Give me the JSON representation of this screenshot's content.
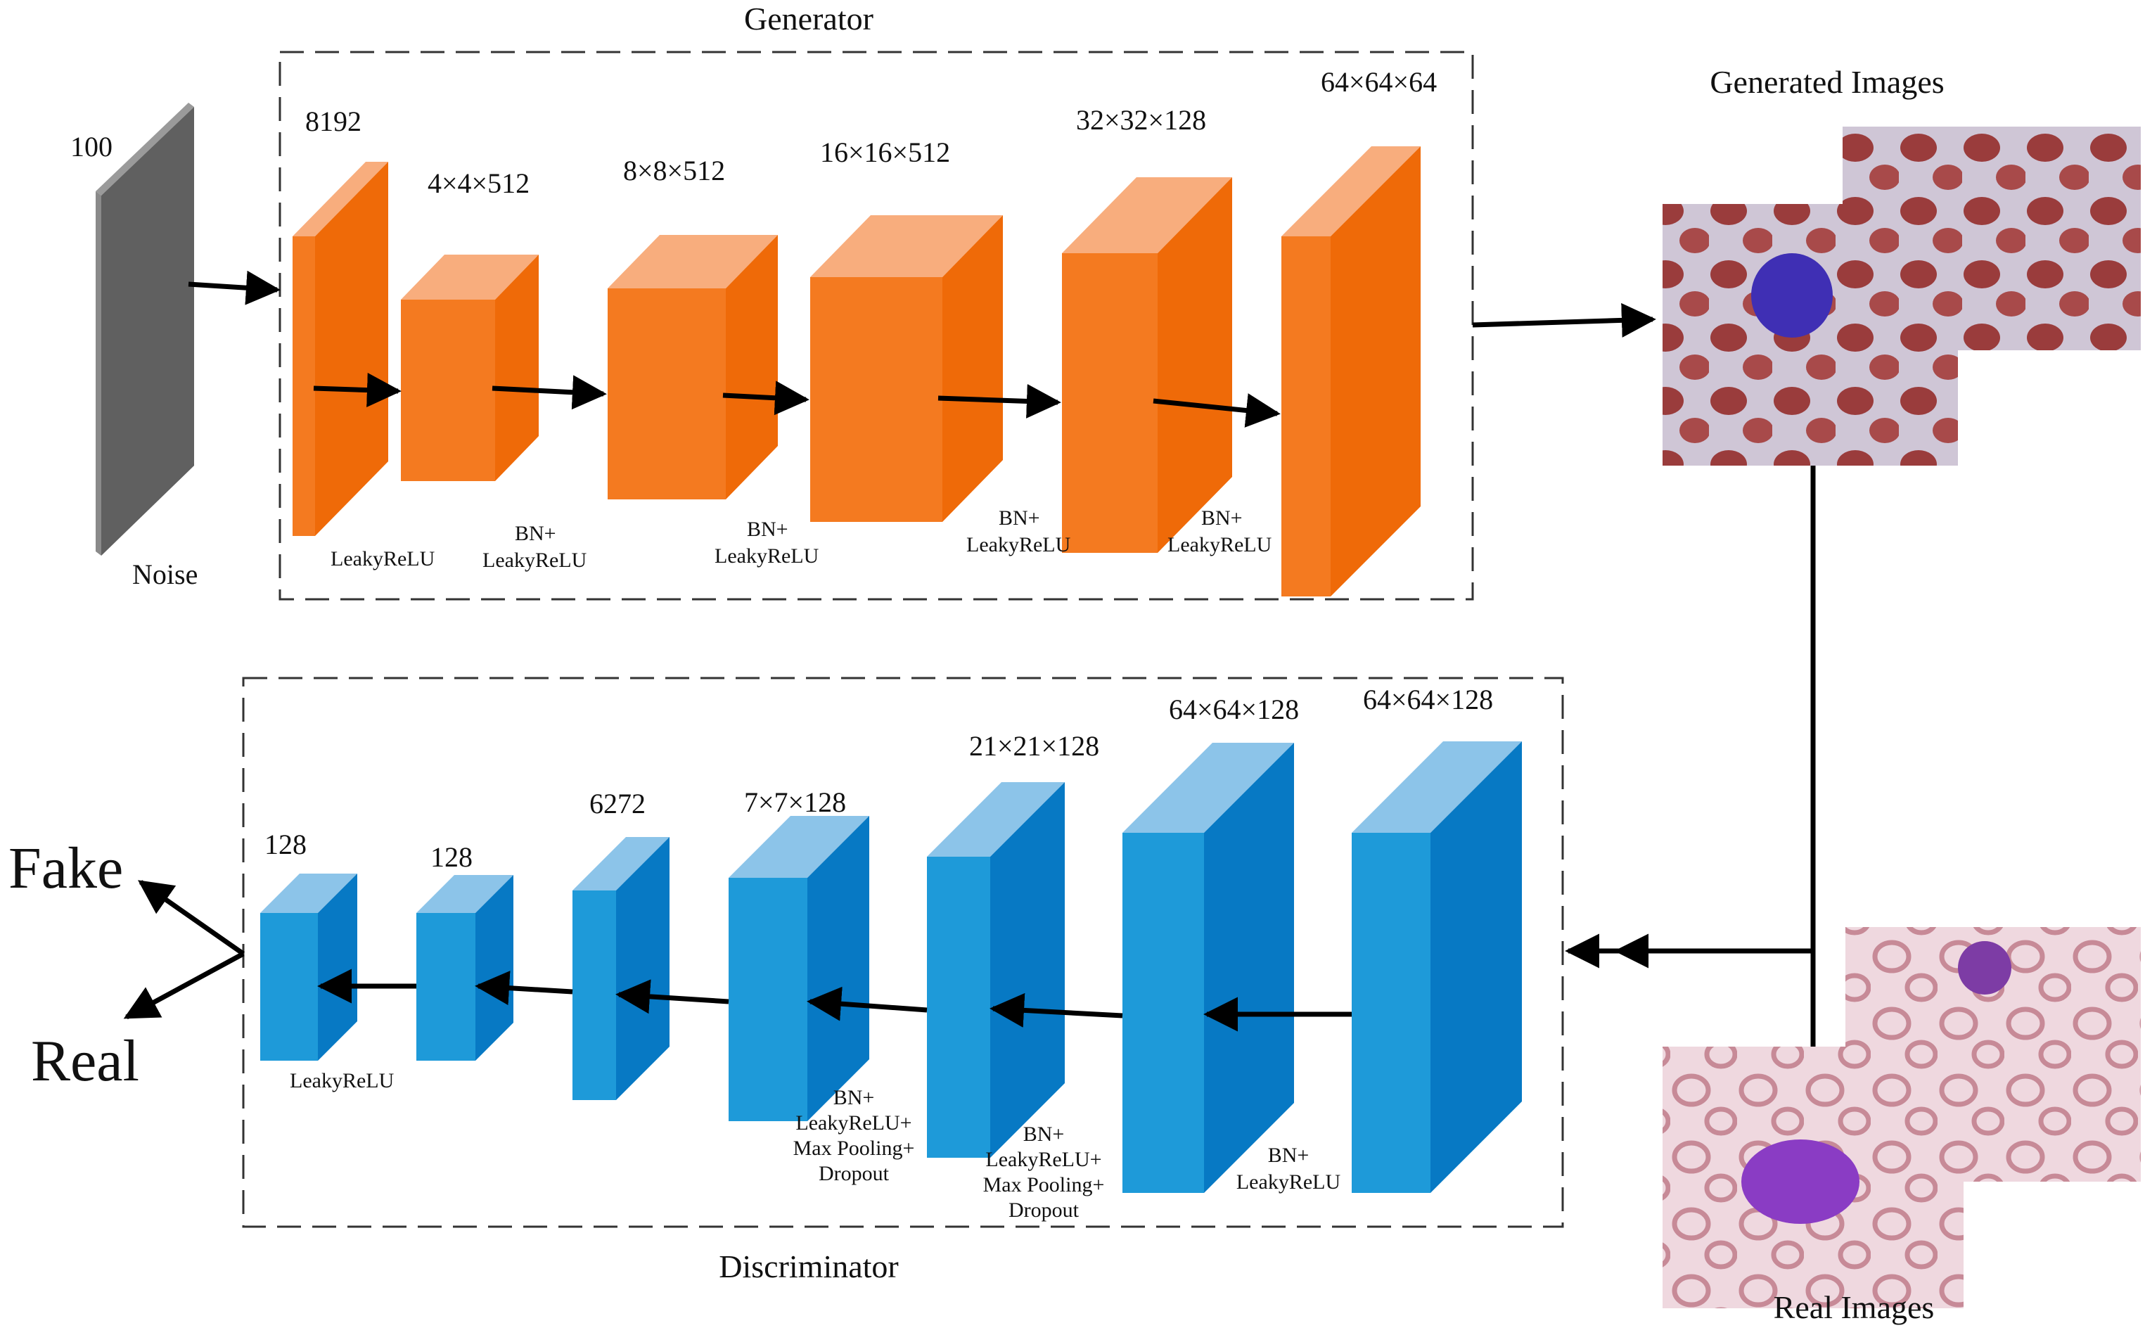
{
  "generator": {
    "title": "Generator",
    "noise_size": "100",
    "noise_label": "Noise",
    "layers": [
      {
        "dim": "8192",
        "activation": [
          "LeakyReLU"
        ]
      },
      {
        "dim": "4×4×512",
        "activation": [
          "BN+",
          "LeakyReLU"
        ]
      },
      {
        "dim": "8×8×512",
        "activation": [
          "BN+",
          "LeakyReLU"
        ]
      },
      {
        "dim": "16×16×512",
        "activation": [
          "BN+",
          "LeakyReLU"
        ]
      },
      {
        "dim": "32×32×128",
        "activation": [
          "BN+",
          "LeakyReLU"
        ]
      },
      {
        "dim": "64×64×64",
        "activation": []
      }
    ]
  },
  "discriminator": {
    "title": "Discriminator",
    "layers": [
      {
        "dim": "128",
        "activation": [
          "LeakyReLU"
        ]
      },
      {
        "dim": "128",
        "activation": []
      },
      {
        "dim": "6272",
        "activation": []
      },
      {
        "dim": "7×7×128",
        "activation": [
          "BN+",
          "LeakyReLU+",
          "Max Pooling+",
          "Dropout"
        ]
      },
      {
        "dim": "21×21×128",
        "activation": [
          "BN+",
          "LeakyReLU+",
          "Max Pooling+",
          "Dropout"
        ]
      },
      {
        "dim": "64×64×128",
        "activation": [
          "BN+",
          "LeakyReLU"
        ]
      },
      {
        "dim": "64×64×128",
        "activation": []
      }
    ]
  },
  "outputs": {
    "fake": "Fake",
    "real": "Real"
  },
  "images": {
    "generated_label": "Generated Images",
    "real_label": "Real Images"
  },
  "colors": {
    "gen_front": "#F47A20",
    "gen_side": "#EF6A08",
    "gen_top": "#F8AD7D",
    "dis_front": "#1E9AD9",
    "dis_side": "#0779C4",
    "dis_top": "#8CC4E9",
    "noise": "#606060",
    "border": "#333333"
  }
}
